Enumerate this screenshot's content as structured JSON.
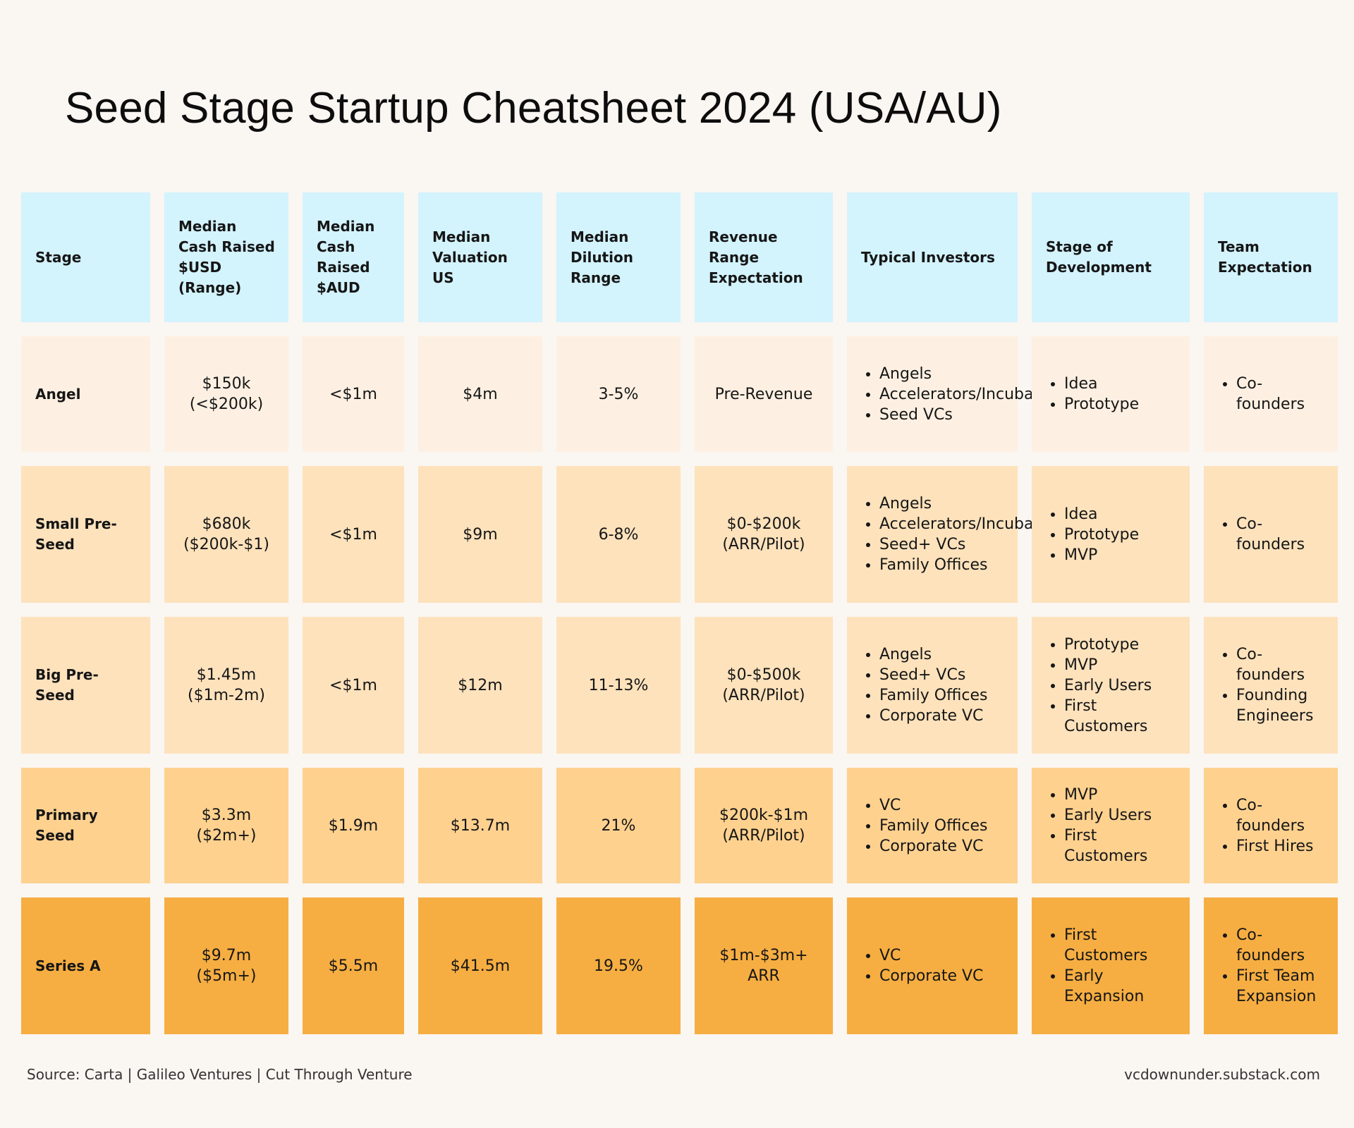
{
  "title": "Seed Stage Startup Cheatsheet 2024 (USA/AU)",
  "headers": [
    "Stage",
    "Median Cash Raised $USD (Range)",
    "Median Cash Raised $AUD",
    "Median Valuation US",
    "Median Dilution Range",
    "Revenue Range Expectation",
    "Typical Investors",
    "Stage of Development",
    "Team Expectation"
  ],
  "rows": [
    {
      "stage": "Angel",
      "cash_usd": "$150k\n(<$200k)",
      "cash_aud": "<$1m",
      "valuation": "$4m",
      "dilution": "3-5%",
      "revenue": "Pre-Revenue",
      "investors": [
        "Angels",
        "Accelerators/Incubators",
        "Seed VCs"
      ],
      "development": [
        "Idea",
        "Prototype"
      ],
      "team": [
        "Co-founders"
      ]
    },
    {
      "stage": "Small Pre-Seed",
      "cash_usd": "$680k\n($200k-$1)",
      "cash_aud": "<$1m",
      "valuation": "$9m",
      "dilution": "6-8%",
      "revenue": "$0-$200k\n(ARR/Pilot)",
      "investors": [
        "Angels",
        "Accelerators/Incubators",
        "Seed+ VCs",
        "Family Offices"
      ],
      "development": [
        "Idea",
        "Prototype",
        "MVP"
      ],
      "team": [
        "Co-founders"
      ]
    },
    {
      "stage": "Big Pre-Seed",
      "cash_usd": "$1.45m\n($1m-2m)",
      "cash_aud": "<$1m",
      "valuation": "$12m",
      "dilution": "11-13%",
      "revenue": "$0-$500k\n(ARR/Pilot)",
      "investors": [
        "Angels",
        "Seed+ VCs",
        "Family Offices",
        "Corporate VC"
      ],
      "development": [
        "Prototype",
        "MVP",
        "Early Users",
        "First Customers"
      ],
      "team": [
        "Co-founders",
        "Founding Engineers"
      ]
    },
    {
      "stage": "Primary Seed",
      "cash_usd": "$3.3m\n($2m+)",
      "cash_aud": "$1.9m",
      "valuation": "$13.7m",
      "dilution": "21%",
      "revenue": "$200k-$1m\n(ARR/Pilot)",
      "investors": [
        "VC",
        "Family Offices",
        "Corporate VC"
      ],
      "development": [
        "MVP",
        "Early Users",
        "First Customers"
      ],
      "team": [
        "Co-founders",
        "First Hires"
      ]
    },
    {
      "stage": "Series A",
      "cash_usd": "$9.7m\n($5m+)",
      "cash_aud": "$5.5m",
      "valuation": "$41.5m",
      "dilution": "19.5%",
      "revenue": "$1m-$3m+\nARR",
      "investors": [
        "VC",
        "Corporate VC"
      ],
      "development": [
        "First Customers",
        "Early Expansion"
      ],
      "team": [
        "Co-founders",
        "First Team Expansion"
      ]
    }
  ],
  "colors": {
    "background": "#faf6f2",
    "header": "#d3f3fd",
    "row_angel": "#fdf0e2",
    "row_small_pre_seed": "#fde2bc",
    "row_big_pre_seed": "#fde2bc",
    "row_primary_seed": "#fed18f",
    "row_series_a": "#f6ae42"
  },
  "footer": {
    "source": "Source: Carta | Galileo Ventures | Cut Through Venture",
    "site": "vcdownunder.substack.com"
  }
}
